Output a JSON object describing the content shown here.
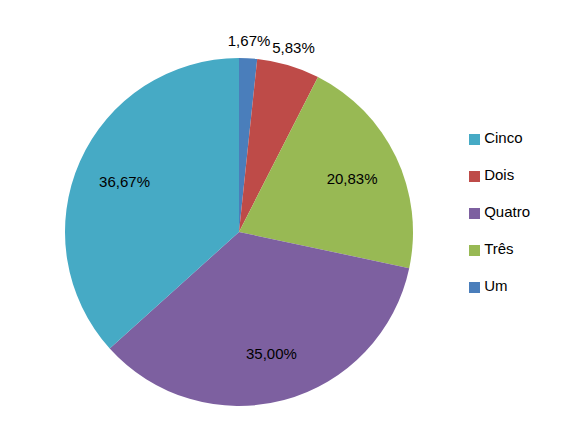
{
  "chart_data": {
    "type": "pie",
    "categories": [
      "Um",
      "Dois",
      "Três",
      "Quatro",
      "Cinco"
    ],
    "values": [
      1.67,
      5.83,
      20.83,
      35.0,
      36.67
    ],
    "value_labels": [
      "1,67%",
      "5,83%",
      "20,83%",
      "35,00%",
      "36,67%"
    ],
    "colors": [
      "#4a7ebb",
      "#be4b48",
      "#98b954",
      "#7d60a0",
      "#46aac5"
    ],
    "data_labels": true,
    "legend": "right"
  }
}
